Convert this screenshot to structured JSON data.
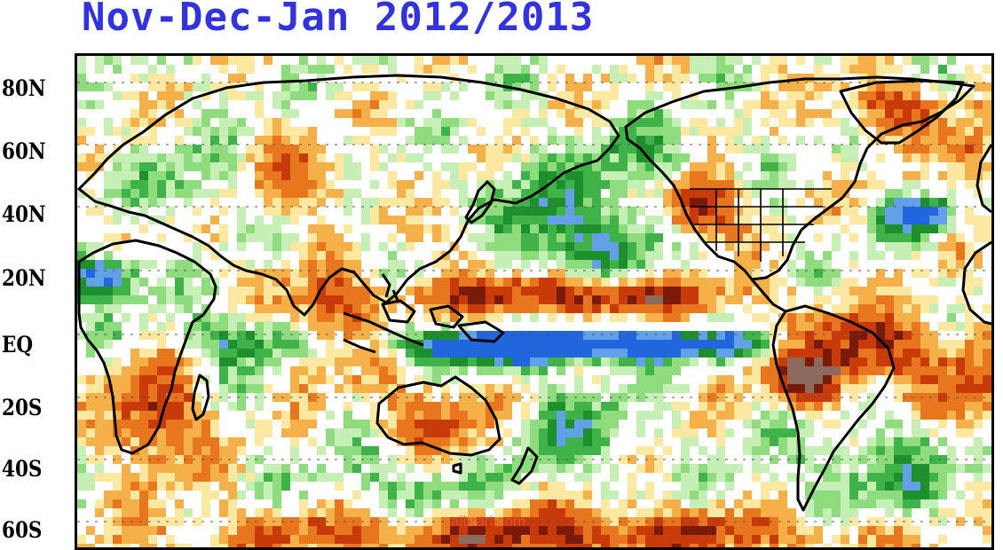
{
  "title": {
    "text": "Nov-Dec-Jan 2012/2013",
    "color": "#3333dd"
  },
  "latitude_labels": [
    "80N",
    "60N",
    "40N",
    "20N",
    "EQ",
    "20S",
    "40S",
    "60S"
  ],
  "watermark": {
    "text": "albrari.com",
    "color": "#e8552e"
  },
  "palette": {
    "deep_brown": "#7a1a0a",
    "brown": "#8c6a5e",
    "dark_orange": "#c93a0a",
    "orange": "#e8761e",
    "light_orange": "#f5b04a",
    "pale_yellow": "#fce8a0",
    "pale_green": "#c6efb6",
    "light_green": "#8edc7e",
    "green": "#3fb34a",
    "dark_green": "#1d8f2d",
    "light_blue": "#62a0e8",
    "blue": "#2266dd",
    "coastline": "#000000",
    "grid": "#555555"
  },
  "icons": {
    "map": "world-map-anomaly-icon"
  }
}
